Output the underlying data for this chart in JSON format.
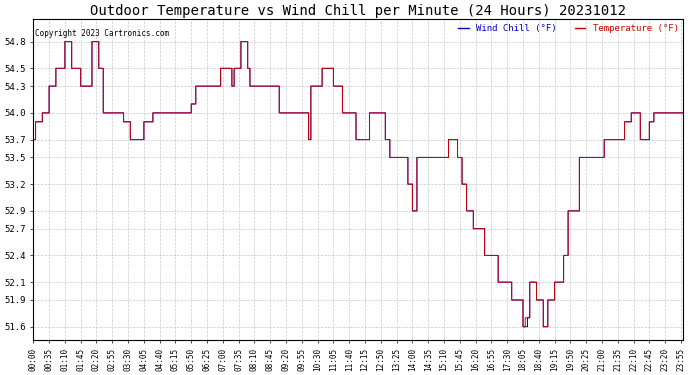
{
  "title": "Outdoor Temperature vs Wind Chill per Minute (24 Hours) 20231012",
  "copyright_text": "Copyright 2023 Cartronics.com",
  "wind_chill_label": "Wind Chill (°F)",
  "temp_label": "Temperature (°F)",
  "wind_chill_color": "#0000cc",
  "temp_color": "#cc0000",
  "background_color": "#ffffff",
  "grid_color": "#bbbbbb",
  "title_color": "#000000",
  "title_fontsize": 10,
  "yticks": [
    51.6,
    51.9,
    52.1,
    52.4,
    52.7,
    52.9,
    53.2,
    53.5,
    53.7,
    54.0,
    54.3,
    54.5,
    54.8
  ],
  "ymin": 51.45,
  "ymax": 55.05,
  "total_minutes": 1440,
  "figwidth": 6.9,
  "figheight": 3.75,
  "dpi": 100
}
